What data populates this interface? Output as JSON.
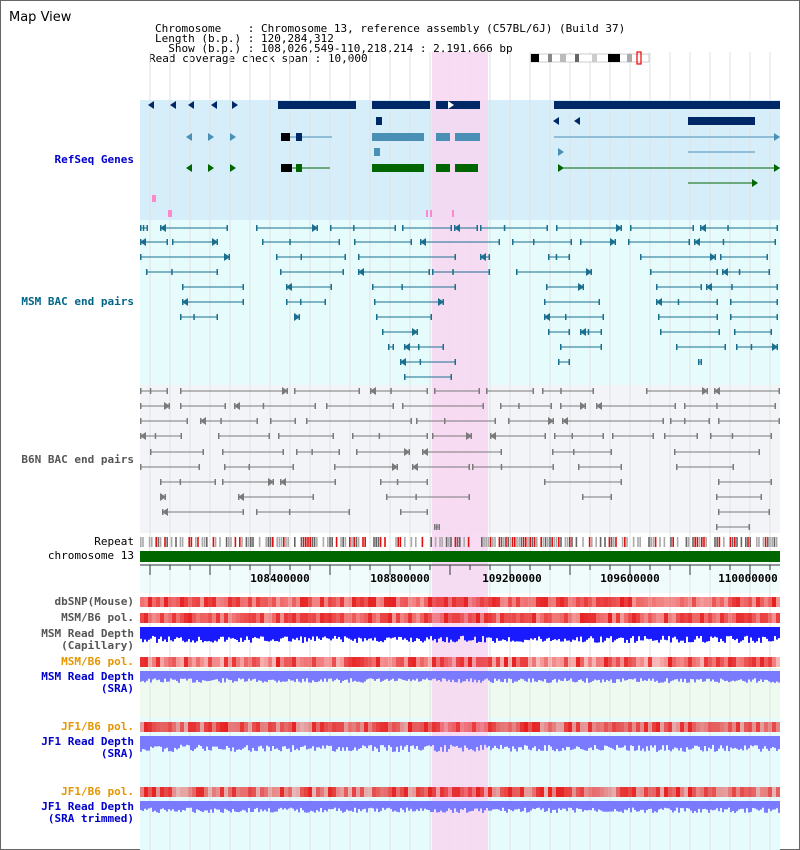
{
  "title": "Map View",
  "info": {
    "chromosome_key": "Chromosome",
    "chromosome_val": "Chromosome 13, reference assembly (C57BL/6J) (Build 37)",
    "length_key": "Length (b.p.)",
    "length_val": "120,284,312",
    "show_key": "Show (b.p.)",
    "show_val": "108,026,549-110,218,214 : 2,191,666 bp",
    "coverage_key": "Read coverage check span",
    "coverage_val": "10,000"
  },
  "tracks": {
    "refseq": "RefSeq Genes",
    "msm_bac": "MSM BAC end pairs",
    "b6n_bac": "B6N BAC end pairs",
    "repeat": "Repeat",
    "chromosome": "chromosome 13",
    "dbsnp": "dbSNP(Mouse)",
    "msm_b6_pol_1": "MSM/B6 pol.",
    "msm_read_depth_cap": "MSM Read Depth",
    "msm_read_depth_cap_sub": "(Capillary)",
    "msm_b6_pol_2": "MSM/B6 pol.",
    "msm_read_depth_sra": "MSM Read Depth",
    "msm_read_depth_sra_sub": "(SRA)",
    "jf1_b6_pol_1": "JF1/B6 pol.",
    "jf1_read_depth": "JF1 Read Depth",
    "jf1_read_depth_sub": "(SRA)",
    "jf1_b6_pol_2": "JF1/B6 pol.",
    "jf1_read_depth_trim": "JF1 Read Depth",
    "jf1_read_depth_trim_sub": "(SRA trimmed)"
  },
  "axis": {
    "ticks": [
      "108400000",
      "108800000",
      "109200000",
      "109600000",
      "110000000"
    ]
  },
  "colors": {
    "refseq_bg": "#d6eefa",
    "msm_bg": "#e6fbfb",
    "b6n_bg": "#f2f4f8",
    "highlight": "#f7d6f1",
    "gene_navy": "#002766",
    "gene_steel": "#4a8fb5",
    "gene_green": "#006600",
    "msm_line": "#1a6f8f",
    "b6n_line": "#7a7a7a",
    "repeat_red": "#dd1111",
    "chrom_green": "#006600",
    "depth_blue": "#1a1aff",
    "depth_light": "#7a7aff"
  }
}
